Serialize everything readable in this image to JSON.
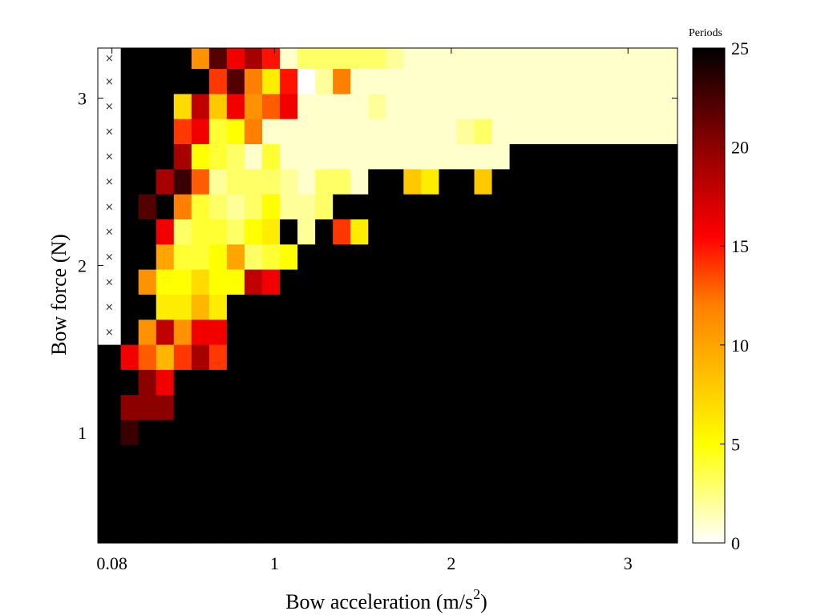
{
  "chart_data": {
    "type": "heatmap",
    "title": "",
    "xlabel": "Bow acceleration (m/s",
    "xlabel_sup": "2",
    "xlabel_close": ")",
    "ylabel": "Bow force (N)",
    "x_ticks": [
      {
        "value": 0.08,
        "label": "0.08"
      },
      {
        "value": 1,
        "label": "1"
      },
      {
        "value": 2,
        "label": "2"
      },
      {
        "value": 3,
        "label": "3"
      }
    ],
    "y_ticks": [
      {
        "value": 1,
        "label": "1"
      },
      {
        "value": 2,
        "label": "2"
      },
      {
        "value": 3,
        "label": "3"
      }
    ],
    "xlim": [
      0.0,
      3.28
    ],
    "ylim": [
      0.34,
      3.3
    ],
    "x_start": 0.08,
    "x_step": 0.1,
    "y_start": 0.4,
    "y_step": 0.15,
    "colorbar": {
      "title": "Periods",
      "min": 0,
      "max": 25,
      "ticks": [
        "0",
        "5",
        "10",
        "15",
        "20",
        "25"
      ],
      "colormap": "hot-reversed",
      "colors": [
        "#ffffff",
        "#ffff00",
        "#ff8000",
        "#ff0000",
        "#800000",
        "#000000"
      ]
    },
    "no_data_marker": "×",
    "grid_values_rows_top_to_bottom": [
      [
        -1,
        25,
        25,
        25,
        25,
        11,
        22,
        16,
        19,
        15,
        1,
        3,
        3,
        3,
        3,
        3,
        2,
        1,
        1,
        1,
        1,
        1,
        1,
        1,
        1,
        1,
        1,
        1,
        1,
        1,
        1,
        1,
        1
      ],
      [
        -1,
        25,
        25,
        25,
        25,
        25,
        14,
        22,
        12,
        6,
        15,
        0,
        2,
        12,
        1,
        1,
        1,
        1,
        1,
        1,
        1,
        1,
        1,
        1,
        1,
        1,
        1,
        1,
        1,
        1,
        1,
        1,
        1
      ],
      [
        -1,
        25,
        25,
        25,
        7,
        18,
        8,
        16,
        11,
        13,
        16,
        1,
        1,
        1,
        1,
        2,
        1,
        1,
        1,
        1,
        1,
        1,
        1,
        1,
        1,
        1,
        1,
        1,
        1,
        1,
        1,
        1,
        1
      ],
      [
        -1,
        25,
        25,
        25,
        14,
        16,
        4,
        5,
        12,
        1,
        1,
        1,
        1,
        1,
        1,
        1,
        1,
        1,
        1,
        1,
        2,
        3,
        1,
        1,
        1,
        1,
        1,
        1,
        1,
        1,
        1,
        1,
        1
      ],
      [
        -1,
        25,
        25,
        25,
        19,
        5,
        4,
        3,
        1,
        4,
        1,
        1,
        1,
        1,
        1,
        1,
        1,
        1,
        1,
        1,
        1,
        1,
        1,
        25,
        25,
        25,
        25,
        25,
        25,
        25,
        25,
        25,
        25
      ],
      [
        -1,
        25,
        25,
        19,
        23,
        13,
        2,
        3,
        3,
        3,
        2,
        1,
        3,
        3,
        1,
        25,
        25,
        8,
        6,
        25,
        25,
        8,
        25,
        25,
        25,
        25,
        25,
        25,
        25,
        25,
        25,
        25,
        25
      ],
      [
        -1,
        25,
        22,
        25,
        12,
        4,
        3,
        2,
        3,
        5,
        2,
        2,
        3,
        25,
        25,
        25,
        25,
        25,
        25,
        25,
        25,
        25,
        25,
        25,
        25,
        25,
        25,
        25,
        25,
        25,
        25,
        25,
        25
      ],
      [
        -1,
        25,
        25,
        16,
        3,
        4,
        4,
        3,
        5,
        6,
        25,
        2,
        25,
        14,
        6,
        25,
        25,
        25,
        25,
        25,
        25,
        25,
        25,
        25,
        25,
        25,
        25,
        25,
        25,
        25,
        25,
        25,
        25
      ],
      [
        -1,
        25,
        25,
        10,
        4,
        4,
        5,
        10,
        3,
        4,
        5,
        25,
        25,
        25,
        25,
        25,
        25,
        25,
        25,
        25,
        25,
        25,
        25,
        25,
        25,
        25,
        25,
        25,
        25,
        25,
        25,
        25,
        25
      ],
      [
        -1,
        25,
        11,
        5,
        5,
        7,
        5,
        5,
        18,
        16,
        25,
        25,
        25,
        25,
        25,
        25,
        25,
        25,
        25,
        25,
        25,
        25,
        25,
        25,
        25,
        25,
        25,
        25,
        25,
        25,
        25,
        25,
        25
      ],
      [
        -1,
        25,
        25,
        6,
        6,
        9,
        6,
        25,
        25,
        25,
        25,
        25,
        25,
        25,
        25,
        25,
        25,
        25,
        25,
        25,
        25,
        25,
        25,
        25,
        25,
        25,
        25,
        25,
        25,
        25,
        25,
        25,
        25
      ],
      [
        -1,
        25,
        11,
        18,
        11,
        16,
        16,
        25,
        25,
        25,
        25,
        25,
        25,
        25,
        25,
        25,
        25,
        25,
        25,
        25,
        25,
        25,
        25,
        25,
        25,
        25,
        25,
        25,
        25,
        25,
        25,
        25,
        25
      ],
      [
        25,
        16,
        13,
        9,
        14,
        19,
        14,
        25,
        25,
        25,
        25,
        25,
        25,
        25,
        25,
        25,
        25,
        25,
        25,
        25,
        25,
        25,
        25,
        25,
        25,
        25,
        25,
        25,
        25,
        25,
        25,
        25,
        25
      ],
      [
        25,
        25,
        20,
        16,
        25,
        25,
        25,
        25,
        25,
        25,
        25,
        25,
        25,
        25,
        25,
        25,
        25,
        25,
        25,
        25,
        25,
        25,
        25,
        25,
        25,
        25,
        25,
        25,
        25,
        25,
        25,
        25,
        25
      ],
      [
        25,
        20,
        20,
        20,
        25,
        25,
        25,
        25,
        25,
        25,
        25,
        25,
        25,
        25,
        25,
        25,
        25,
        25,
        25,
        25,
        25,
        25,
        25,
        25,
        25,
        25,
        25,
        25,
        25,
        25,
        25,
        25,
        25
      ],
      [
        25,
        23,
        25,
        25,
        25,
        25,
        25,
        25,
        25,
        25,
        25,
        25,
        25,
        25,
        25,
        25,
        25,
        25,
        25,
        25,
        25,
        25,
        25,
        25,
        25,
        25,
        25,
        25,
        25,
        25,
        25,
        25,
        25
      ],
      [
        25,
        25,
        25,
        25,
        25,
        25,
        25,
        25,
        25,
        25,
        25,
        25,
        25,
        25,
        25,
        25,
        25,
        25,
        25,
        25,
        25,
        25,
        25,
        25,
        25,
        25,
        25,
        25,
        25,
        25,
        25,
        25,
        25
      ],
      [
        25,
        25,
        25,
        25,
        25,
        25,
        25,
        25,
        25,
        25,
        25,
        25,
        25,
        25,
        25,
        25,
        25,
        25,
        25,
        25,
        25,
        25,
        25,
        25,
        25,
        25,
        25,
        25,
        25,
        25,
        25,
        25,
        25
      ],
      [
        25,
        25,
        25,
        25,
        25,
        25,
        25,
        25,
        25,
        25,
        25,
        25,
        25,
        25,
        25,
        25,
        25,
        25,
        25,
        25,
        25,
        25,
        25,
        25,
        25,
        25,
        25,
        25,
        25,
        25,
        25,
        25,
        25
      ],
      [
        25,
        25,
        25,
        25,
        25,
        25,
        25,
        25,
        25,
        25,
        25,
        25,
        25,
        25,
        25,
        25,
        25,
        25,
        25,
        25,
        25,
        25,
        25,
        25,
        25,
        25,
        25,
        25,
        25,
        25,
        25,
        25,
        25
      ]
    ]
  }
}
